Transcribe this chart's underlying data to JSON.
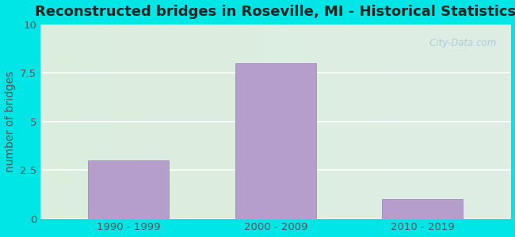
{
  "title": "Reconstructed bridges in Roseville, MI - Historical Statistics",
  "categories": [
    "1990 - 1999",
    "2000 - 2009",
    "2010 - 2019"
  ],
  "values": [
    3,
    8,
    1
  ],
  "bar_color": "#b59dcc",
  "bar_edgecolor": "#9a80b8",
  "ylabel": "number of bridges",
  "ylim": [
    0,
    10
  ],
  "yticks": [
    0,
    2.5,
    5,
    7.5,
    10
  ],
  "ytick_labels": [
    "0",
    "2.5",
    "5",
    "7.5",
    "10"
  ],
  "title_fontsize": 13,
  "axis_fontsize": 10,
  "tick_fontsize": 9.5,
  "background_outer": "#00e5e5",
  "grad_color_left": "#d4edc8",
  "grad_color_right": "#e4eef8",
  "watermark_text": "   City-Data.com",
  "watermark_color": "#a8c8d8",
  "bar_width": 0.55
}
